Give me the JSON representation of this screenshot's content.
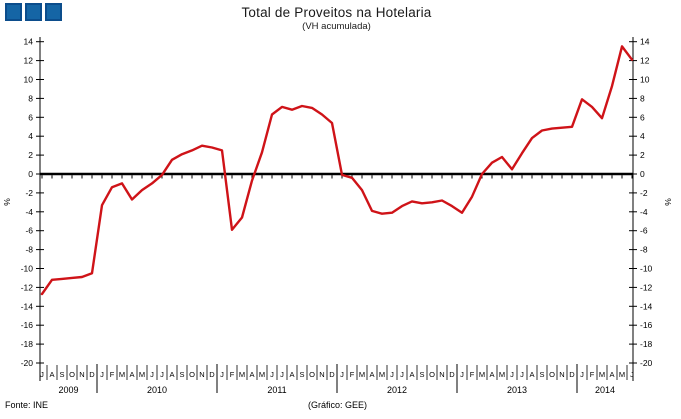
{
  "page": {
    "background": "#ffffff"
  },
  "logo": {
    "description": "three-blue-squares",
    "count": 3,
    "square_color": "#1565a5",
    "square_border_color": "#0c4d8c"
  },
  "header": {
    "title": "Total de Proveitos na Hotelaria",
    "subtitle": "(VH acumulada)"
  },
  "footer": {
    "source": "Fonte: INE",
    "credit": "(Gráfico: GEE)"
  },
  "chart_data": {
    "type": "line",
    "title": "Total de Proveitos na Hotelaria",
    "subtitle": "(VH acumulada)",
    "ylabel_left": "%",
    "ylabel_right": "%",
    "unit": "%",
    "ylim": [
      -20,
      14
    ],
    "ytick_step": 2,
    "grid": false,
    "legend": "none",
    "line_color": "#cf1318",
    "zero_axis": true,
    "years": [
      {
        "label": "2009",
        "months": [
          "J",
          "A",
          "S",
          "O",
          "N",
          "D"
        ],
        "values": [
          -12.7,
          -11.2,
          -11.1,
          -11.0,
          -10.9,
          -10.5
        ]
      },
      {
        "label": "2010",
        "months": [
          "J",
          "F",
          "M",
          "A",
          "M",
          "J",
          "J",
          "A",
          "S",
          "O",
          "N",
          "D"
        ],
        "values": [
          -3.3,
          -1.4,
          -1.0,
          -2.7,
          -1.7,
          -1.0,
          -0.1,
          1.5,
          2.1,
          2.5,
          3.0,
          2.8
        ]
      },
      {
        "label": "2011",
        "months": [
          "J",
          "F",
          "M",
          "A",
          "M",
          "J",
          "J",
          "A",
          "S",
          "O",
          "N",
          "D"
        ],
        "values": [
          2.5,
          -5.9,
          -4.6,
          -0.7,
          2.3,
          6.3,
          7.1,
          6.8,
          7.2,
          7.0,
          6.3,
          5.4
        ]
      },
      {
        "label": "2012",
        "months": [
          "J",
          "F",
          "M",
          "A",
          "M",
          "J",
          "J",
          "A",
          "S",
          "O",
          "N",
          "D"
        ],
        "values": [
          -0.1,
          -0.4,
          -1.7,
          -3.9,
          -4.2,
          -4.1,
          -3.4,
          -2.9,
          -3.1,
          -3.0,
          -2.8,
          -3.4
        ]
      },
      {
        "label": "2013",
        "months": [
          "J",
          "F",
          "M",
          "A",
          "M",
          "J",
          "J",
          "A",
          "S",
          "O",
          "N",
          "D"
        ],
        "values": [
          -4.1,
          -2.4,
          0.0,
          1.2,
          1.8,
          0.5,
          2.2,
          3.8,
          4.6,
          4.8,
          4.9,
          5.0
        ]
      },
      {
        "label": "2014",
        "months": [
          "J",
          "F",
          "M",
          "A",
          "M",
          "J"
        ],
        "values": [
          7.9,
          7.1,
          5.9,
          9.3,
          13.5,
          12.1
        ]
      }
    ]
  }
}
